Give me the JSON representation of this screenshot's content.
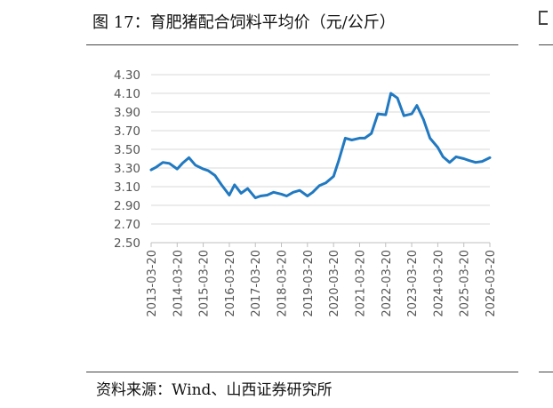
{
  "header": {
    "title": "图 17：育肥猪配合饲料平均价（元/公斤）"
  },
  "footer": {
    "source": "资料来源：Wind、山西证券研究所"
  },
  "chart_data": {
    "type": "line",
    "title": "育肥猪配合饲料平均价（元/公斤）",
    "xlabel": "",
    "ylabel": "",
    "ylim": [
      2.5,
      4.3
    ],
    "yticks": [
      "2.50",
      "2.70",
      "2.90",
      "3.10",
      "3.30",
      "3.50",
      "3.70",
      "3.90",
      "4.10",
      "4.30"
    ],
    "xticks": [
      "2013-03-20",
      "2014-03-20",
      "2015-03-20",
      "2016-03-20",
      "2017-03-20",
      "2018-03-20",
      "2019-03-20",
      "2020-03-20",
      "2021-03-20",
      "2022-03-20",
      "2023-03-20",
      "2024-03-20",
      "2025-03-20",
      "2026-03-20"
    ],
    "grid": true,
    "line_color": "#2179c1",
    "series": [
      {
        "x": [
          "2013-03-20",
          "2013-06-01",
          "2013-09-01",
          "2013-12-01",
          "2014-03-20",
          "2014-06-01",
          "2014-09-01",
          "2014-12-01",
          "2015-03-20",
          "2015-06-01",
          "2015-09-01",
          "2015-12-01",
          "2016-03-20",
          "2016-06-01",
          "2016-09-01",
          "2016-12-01",
          "2017-03-20",
          "2017-06-01",
          "2017-09-01",
          "2017-12-01",
          "2018-03-20",
          "2018-06-01",
          "2018-09-01",
          "2018-12-01",
          "2019-03-20",
          "2019-06-01",
          "2019-09-01",
          "2019-12-01",
          "2020-03-20",
          "2020-06-01",
          "2020-09-01",
          "2020-12-01",
          "2021-03-20",
          "2021-06-01",
          "2021-09-01",
          "2021-12-01",
          "2022-03-20",
          "2022-06-01",
          "2022-09-01",
          "2022-12-01",
          "2023-03-20",
          "2023-06-01",
          "2023-09-01",
          "2023-12-01",
          "2024-03-20",
          "2024-06-01",
          "2024-09-01",
          "2024-12-01",
          "2025-03-20",
          "2025-06-01",
          "2025-09-01",
          "2025-12-01",
          "2026-03-20"
        ],
        "values": [
          3.28,
          3.31,
          3.36,
          3.35,
          3.29,
          3.35,
          3.41,
          3.33,
          3.29,
          3.27,
          3.22,
          3.12,
          3.01,
          3.12,
          3.03,
          3.08,
          2.98,
          3.0,
          3.01,
          3.04,
          3.02,
          3.0,
          3.04,
          3.06,
          3.0,
          3.04,
          3.11,
          3.14,
          3.21,
          3.38,
          3.62,
          3.6,
          3.62,
          3.62,
          3.67,
          3.88,
          3.87,
          4.1,
          4.05,
          3.86,
          3.88,
          3.97,
          3.82,
          3.62,
          3.52,
          3.42,
          3.36,
          3.42,
          3.4,
          3.38,
          3.36,
          3.37,
          3.41
        ]
      }
    ]
  }
}
